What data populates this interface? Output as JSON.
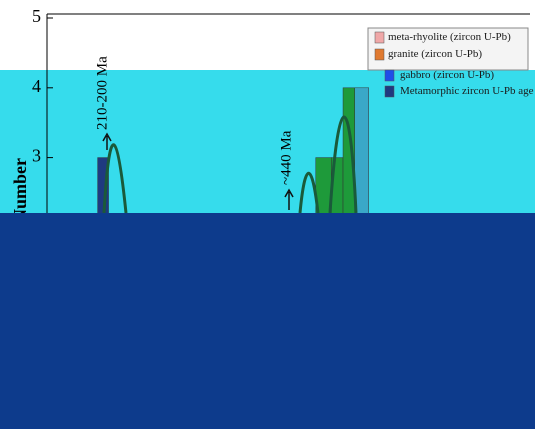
{
  "chart_data": {
    "type": "histogram",
    "y_label": "Number",
    "ylim": [
      0,
      5
    ],
    "yticks": [
      3,
      4,
      5
    ],
    "xlim": [
      130,
      750
    ],
    "annotations": [
      "210-200 Ma",
      "~440 Ma"
    ],
    "legend": [
      {
        "name": "meta-rhyolite (zircon U-Pb)",
        "color": "#f0a8a8"
      },
      {
        "name": "granite (zircon U-Pb)",
        "color": "#e07a30"
      },
      {
        "name": "gabbro (zircon U-Pb)",
        "color": "#1f4fe8"
      },
      {
        "name": "Metamorphic zircon U-Pb age",
        "color": "#1f3a80"
      }
    ],
    "series": [
      {
        "color": "#1f3a80",
        "bins": [
          195,
          209
        ],
        "values": [
          3
        ]
      },
      {
        "color": "#1e9a3a",
        "bins": [
          475,
          495,
          510,
          525
        ],
        "values": [
          3,
          3,
          4
        ]
      },
      {
        "color": "#3aa8c8",
        "bins": [
          525,
          543
        ],
        "values": [
          4
        ]
      }
    ]
  }
}
